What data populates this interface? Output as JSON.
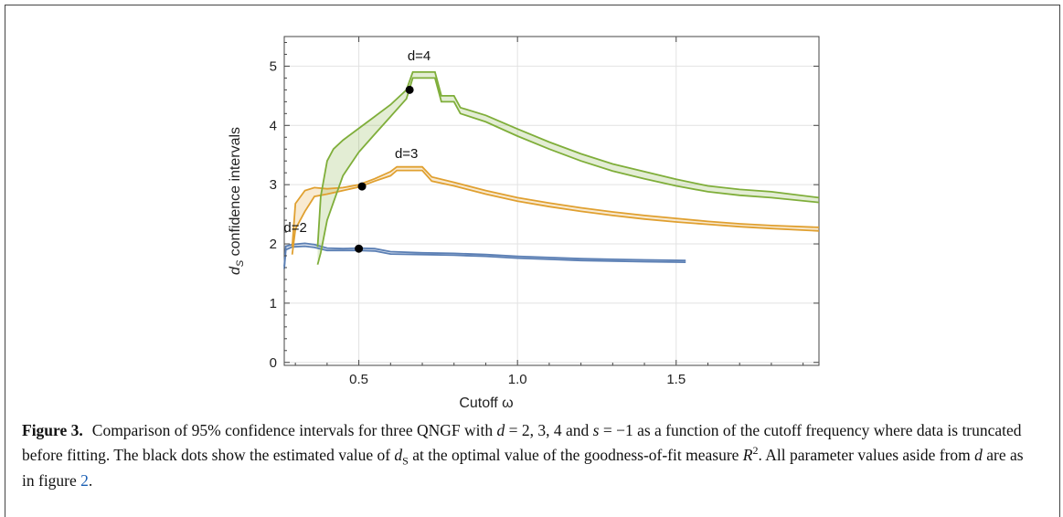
{
  "chart_data": {
    "type": "line",
    "ylabel_main": "d",
    "ylabel_sub": "S",
    "ylabel_rest": " confidence intervals",
    "xlabel": "Cutoff ω",
    "xlim": [
      0.265,
      1.95
    ],
    "ylim": [
      -0.05,
      5.5
    ],
    "xticks": [
      "0.5",
      "1.0",
      "1.5"
    ],
    "xtick_values": [
      0.5,
      1.0,
      1.5
    ],
    "yticks": [
      "0",
      "1",
      "2",
      "3",
      "4",
      "5"
    ],
    "ytick_values": [
      0,
      1,
      2,
      3,
      4,
      5
    ],
    "grid": true,
    "series": [
      {
        "name": "d=2",
        "color": "#5b7fb4",
        "label_at": [
          0.3,
          2.2
        ],
        "x": [
          0.265,
          0.27,
          0.29,
          0.33,
          0.36,
          0.4,
          0.45,
          0.5,
          0.55,
          0.6,
          0.7,
          0.8,
          0.9,
          1.0,
          1.1,
          1.2,
          1.3,
          1.4,
          1.53
        ],
        "lower": [
          1.58,
          1.9,
          1.95,
          1.96,
          1.94,
          1.89,
          1.89,
          1.89,
          1.88,
          1.83,
          1.82,
          1.81,
          1.79,
          1.76,
          1.74,
          1.72,
          1.71,
          1.7,
          1.69
        ],
        "upper": [
          1.62,
          1.96,
          1.99,
          2.01,
          1.99,
          1.93,
          1.92,
          1.93,
          1.92,
          1.87,
          1.85,
          1.84,
          1.82,
          1.79,
          1.77,
          1.75,
          1.74,
          1.73,
          1.72
        ],
        "estimate": [
          0.5,
          1.92
        ]
      },
      {
        "name": "d=3",
        "color": "#e0a030",
        "label_at": [
          0.65,
          3.45
        ],
        "x": [
          0.29,
          0.3,
          0.33,
          0.36,
          0.4,
          0.45,
          0.5,
          0.55,
          0.6,
          0.62,
          0.7,
          0.73,
          0.8,
          0.9,
          1.0,
          1.1,
          1.2,
          1.3,
          1.4,
          1.5,
          1.6,
          1.7,
          1.8,
          1.95
        ],
        "lower": [
          1.82,
          2.25,
          2.55,
          2.8,
          2.84,
          2.9,
          2.96,
          3.06,
          3.15,
          3.24,
          3.24,
          3.06,
          2.98,
          2.84,
          2.72,
          2.63,
          2.55,
          2.48,
          2.42,
          2.37,
          2.33,
          2.29,
          2.26,
          2.22
        ],
        "upper": [
          1.95,
          2.68,
          2.9,
          2.95,
          2.93,
          2.95,
          3.0,
          3.1,
          3.22,
          3.3,
          3.3,
          3.13,
          3.04,
          2.9,
          2.78,
          2.69,
          2.61,
          2.54,
          2.48,
          2.43,
          2.38,
          2.34,
          2.31,
          2.28
        ],
        "estimate": [
          0.51,
          2.97
        ]
      },
      {
        "name": "d=4",
        "color": "#7fae3a",
        "label_at": [
          0.69,
          5.1
        ],
        "x": [
          0.37,
          0.38,
          0.4,
          0.42,
          0.45,
          0.5,
          0.55,
          0.6,
          0.65,
          0.67,
          0.74,
          0.76,
          0.8,
          0.82,
          0.9,
          1.0,
          1.1,
          1.2,
          1.3,
          1.4,
          1.5,
          1.6,
          1.7,
          1.8,
          1.95
        ],
        "lower": [
          1.65,
          1.85,
          2.4,
          2.7,
          3.15,
          3.55,
          3.85,
          4.15,
          4.45,
          4.8,
          4.8,
          4.4,
          4.4,
          4.2,
          4.06,
          3.82,
          3.6,
          3.4,
          3.23,
          3.1,
          2.98,
          2.88,
          2.82,
          2.78,
          2.7
        ],
        "upper": [
          1.95,
          2.8,
          3.4,
          3.6,
          3.75,
          3.95,
          4.15,
          4.35,
          4.6,
          4.9,
          4.9,
          4.5,
          4.5,
          4.3,
          4.17,
          3.94,
          3.72,
          3.52,
          3.35,
          3.22,
          3.09,
          2.98,
          2.92,
          2.88,
          2.78
        ],
        "estimate": [
          0.66,
          4.6
        ]
      }
    ]
  },
  "caption": {
    "label": "Figure 3.",
    "text1": "Comparison of 95% confidence intervals for three QNGF with ",
    "d_sym": "d",
    "text2": " = 2, 3, 4 and ",
    "s_sym": "s",
    "text3": " = −1 as a function of the cutoff frequency where data is truncated before fitting. The black dots show the estimated value of ",
    "ds_main": "d",
    "ds_sub": "S",
    "text4": " at the optimal value of the goodness-of-fit measure ",
    "r_sym": "R",
    "r_sup": "2",
    "text5": ". All parameter values aside from ",
    "d_sym2": "d",
    "text6": " are as in figure ",
    "fig_ref": "2",
    "text7": "."
  }
}
